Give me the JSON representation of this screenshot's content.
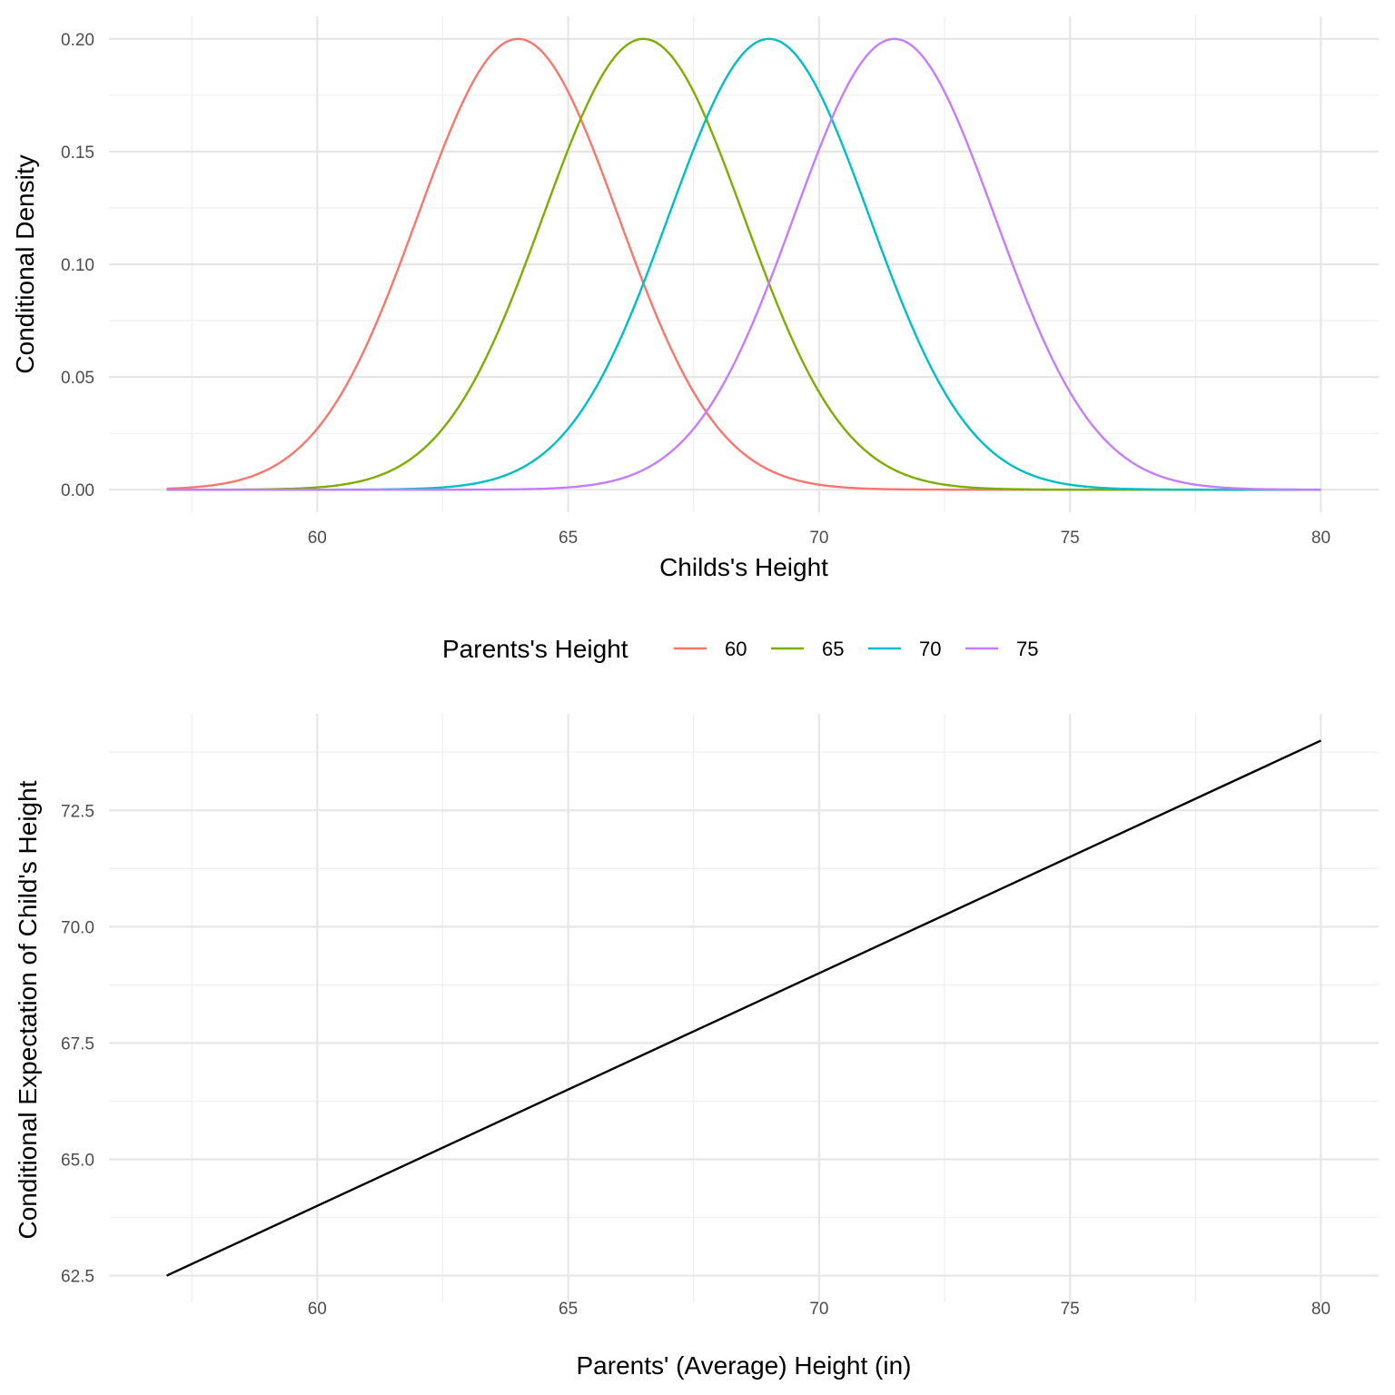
{
  "chart_data": [
    {
      "type": "line",
      "xlabel": "Childs's Height",
      "ylabel": "Conditional Density",
      "xlim": [
        57,
        80
      ],
      "ylim": [
        0,
        0.2
      ],
      "x_ticks": [
        60,
        65,
        70,
        75,
        80
      ],
      "x_tick_labels": [
        "60",
        "65",
        "70",
        "75",
        "80"
      ],
      "y_ticks": [
        0,
        0.05,
        0.1,
        0.15,
        0.2
      ],
      "y_tick_labels": [
        "0.00",
        "0.05",
        "0.10",
        "0.15",
        "0.20"
      ],
      "grid": true,
      "legend": {
        "title": "Parents's Height",
        "position": "bottom"
      },
      "curve_sd": 2,
      "series": [
        {
          "name": "60",
          "mean": 64.0,
          "peak": 0.2,
          "color": "#F8766D"
        },
        {
          "name": "65",
          "mean": 66.5,
          "peak": 0.2,
          "color": "#7CAE00"
        },
        {
          "name": "70",
          "mean": 69.0,
          "peak": 0.2,
          "color": "#00BFC4"
        },
        {
          "name": "75",
          "mean": 71.5,
          "peak": 0.2,
          "color": "#C77CFF"
        }
      ]
    },
    {
      "type": "line",
      "xlabel": "Parents' (Average) Height (in)",
      "ylabel": "Conditional Expectation of Child's Height",
      "xlim": [
        57,
        80
      ],
      "ylim": [
        62.5,
        74
      ],
      "x_ticks": [
        60,
        65,
        70,
        75,
        80
      ],
      "x_tick_labels": [
        "60",
        "65",
        "70",
        "75",
        "80"
      ],
      "y_ticks": [
        62.5,
        65,
        67.5,
        70,
        72.5
      ],
      "y_tick_labels": [
        "62.5",
        "65.0",
        "67.5",
        "70.0",
        "72.5"
      ],
      "grid": true,
      "series": [
        {
          "x": [
            57,
            80
          ],
          "y": [
            62.5,
            74
          ],
          "color": "#000000"
        }
      ]
    }
  ]
}
